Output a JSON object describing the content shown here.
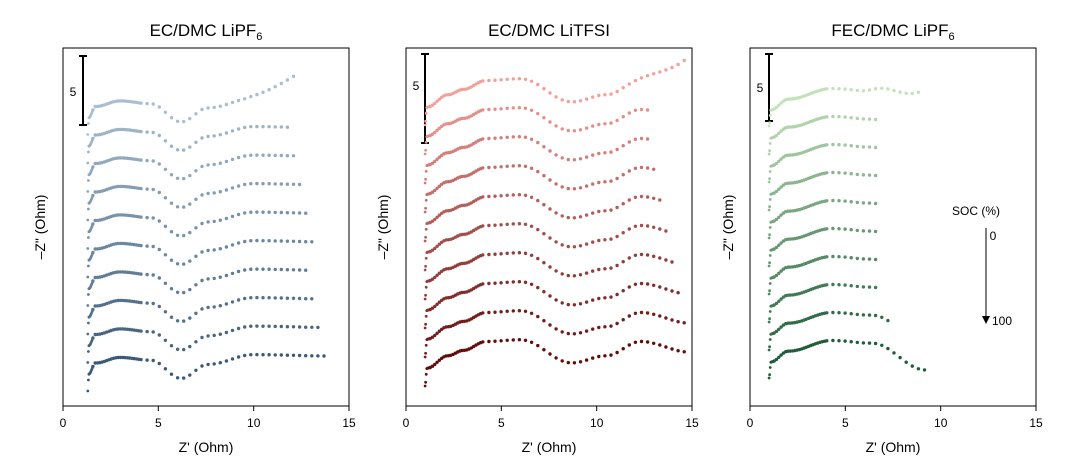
{
  "chart_data": [
    {
      "type": "scatter",
      "title_main": "EC/DMC LiPF",
      "title_sub": "6",
      "xlabel": "Z' (Ohm)",
      "ylabel": "–Z\" (Ohm)",
      "xlim": [
        0,
        15
      ],
      "xticks": [
        0,
        5,
        10,
        15
      ],
      "scale_bar_label": "5",
      "scale_bar_value": 5,
      "series_count": 10,
      "color_start": "#a9bfd1",
      "color_end": "#3c5a78",
      "curve": {
        "x_start": 1.3,
        "x_end": [
          12.4,
          11.9,
          12.2,
          12.6,
          12.9,
          13.3,
          13.0,
          13.2,
          13.4,
          14.0
        ],
        "nodes": [
          [
            1.3,
            0.0
          ],
          [
            1.35,
            1.2
          ],
          [
            1.7,
            2.0
          ],
          [
            3.0,
            2.4
          ],
          [
            4.6,
            2.2
          ],
          [
            6.2,
            0.9
          ],
          [
            7.6,
            1.9
          ],
          [
            10.0,
            2.6
          ],
          [
            14.0,
            2.5
          ]
        ],
        "tail_rise": [
          1.9,
          0,
          0,
          0,
          0,
          0,
          0,
          0,
          0,
          0
        ]
      }
    },
    {
      "type": "scatter",
      "title_main": "EC/DMC LiTFSI",
      "title_sub": "",
      "xlabel": "Z' (Ohm)",
      "ylabel": "–Z\" (Ohm)",
      "xlim": [
        0,
        15
      ],
      "xticks": [
        0,
        5,
        10,
        15
      ],
      "scale_bar_label": "5",
      "scale_bar_value": 5,
      "series_count": 10,
      "color_start": "#f3a09a",
      "color_end": "#620c0c",
      "curve": {
        "x_start": 1.0,
        "x_end": [
          14.8,
          12.9,
          12.9,
          13.3,
          13.5,
          13.9,
          14.1,
          14.4,
          14.7,
          14.9
        ],
        "nodes": [
          [
            1.0,
            0.0
          ],
          [
            1.1,
            1.0
          ],
          [
            2.2,
            1.7
          ],
          [
            3.0,
            2.0
          ],
          [
            4.2,
            2.5
          ],
          [
            6.0,
            2.6
          ],
          [
            8.7,
            1.3
          ],
          [
            10.5,
            1.7
          ],
          [
            12.3,
            2.5
          ],
          [
            14.9,
            1.9
          ]
        ],
        "tail_rise": [
          1.9,
          0,
          0,
          0,
          0,
          0,
          0,
          0,
          0,
          0
        ]
      }
    },
    {
      "type": "scatter",
      "title_main": "FEC/DMC LiPF",
      "title_sub": "6",
      "xlabel": "Z' (Ohm)",
      "ylabel": "–Z\" (Ohm)",
      "xlim": [
        0,
        15
      ],
      "xticks": [
        0,
        5,
        10,
        15
      ],
      "scale_bar_label": "5",
      "scale_bar_value": 5,
      "series_count": 10,
      "color_start": "#c3e2ba",
      "color_end": "#1f5c3a",
      "curve": {
        "x_start": 1.0,
        "x_end": [
          8.9,
          6.6,
          6.6,
          6.6,
          6.6,
          6.6,
          6.6,
          6.7,
          7.3,
          9.2
        ],
        "nodes": [
          [
            1.0,
            0.0
          ],
          [
            1.1,
            1.2
          ],
          [
            2.0,
            2.0
          ],
          [
            4.3,
            2.8
          ],
          [
            6.4,
            2.6
          ],
          [
            9.2,
            0.6
          ]
        ],
        "tail_rise": [
          1.9,
          0,
          0,
          0,
          0,
          0,
          0,
          0,
          0,
          0
        ]
      }
    }
  ],
  "legend": {
    "title": "SOC (%)",
    "start_label": "0",
    "end_label": "100"
  }
}
